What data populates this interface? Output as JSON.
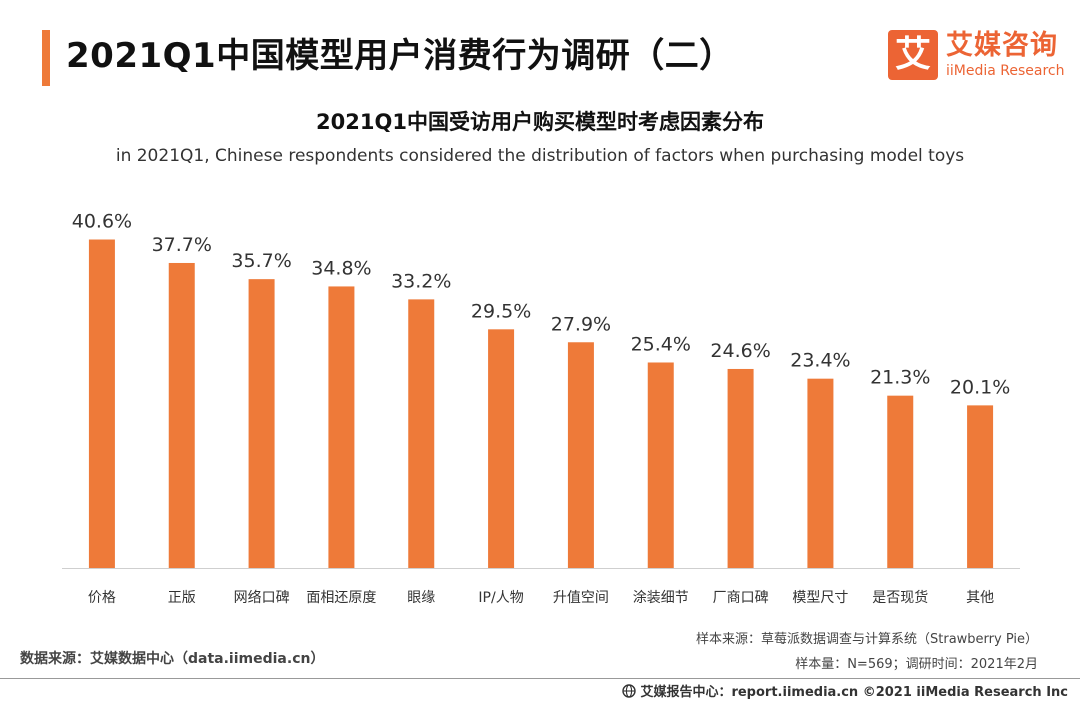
{
  "header": {
    "title": "2021Q1中国模型用户消费行为调研（二）"
  },
  "logo": {
    "mark": "艾",
    "name_cn": "艾媒咨询",
    "name_en": "iiMedia Research"
  },
  "chart_data": {
    "type": "bar",
    "title": "2021Q1中国受访用户购买模型时考虑因素分布",
    "subtitle": "in 2021Q1, Chinese respondents considered the distribution of factors when purchasing model toys",
    "categories": [
      "价格",
      "正版",
      "网络口碑",
      "面相还原度",
      "眼缘",
      "IP/人物",
      "升值空间",
      "涂装细节",
      "厂商口碑",
      "模型尺寸",
      "是否现货",
      "其他"
    ],
    "values": [
      40.6,
      37.7,
      35.7,
      34.8,
      33.2,
      29.5,
      27.9,
      25.4,
      24.6,
      23.4,
      21.3,
      20.1
    ],
    "data_labels": [
      "40.6%",
      "37.7%",
      "35.7%",
      "34.8%",
      "33.2%",
      "29.5%",
      "27.9%",
      "25.4%",
      "24.6%",
      "23.4%",
      "21.3%",
      "20.1%"
    ],
    "unit": "%",
    "ylim": [
      0,
      44
    ],
    "grid": false,
    "bar_color": "#ee7a39"
  },
  "source": {
    "data_source": "数据来源：艾媒数据中心（data.iimedia.cn）",
    "sample_source": "样本来源：草莓派数据调查与计算系统（Strawberry Pie）",
    "sample_info": "样本量：N=569；调研时间：2021年2月"
  },
  "footer": {
    "text": "艾媒报告中心：report.iimedia.cn   ©2021  iiMedia Research  Inc"
  },
  "colors": {
    "accent": "#ee7a39",
    "brand": "#ec6434"
  }
}
